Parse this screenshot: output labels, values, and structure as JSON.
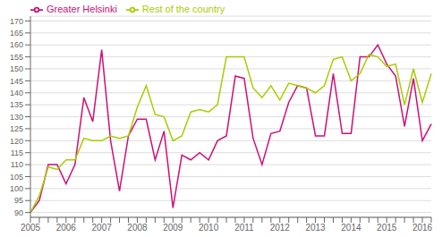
{
  "chart_data": {
    "type": "line",
    "categories": [
      "2005",
      null,
      null,
      null,
      "2006",
      null,
      null,
      null,
      "2007",
      null,
      null,
      null,
      "2008",
      null,
      null,
      null,
      "2009",
      null,
      null,
      null,
      "2010",
      null,
      null,
      null,
      "2011",
      null,
      null,
      null,
      "2012",
      null,
      null,
      null,
      "2013",
      null,
      null,
      null,
      "2014",
      null,
      null,
      null,
      "2015",
      null,
      null,
      null,
      "2016",
      null
    ],
    "series": [
      {
        "name": "Greater Helsinki",
        "color": "#cc1177",
        "values": [
          90,
          95,
          110,
          110,
          102,
          110,
          138,
          128,
          158,
          120,
          99,
          122,
          129,
          129,
          112,
          124,
          92,
          114,
          112,
          115,
          112,
          120,
          122,
          147,
          146,
          121,
          110,
          123,
          124,
          136,
          143,
          142,
          122,
          122,
          148,
          123,
          123,
          155,
          155,
          160,
          152,
          147,
          126,
          146,
          120,
          127
        ]
      },
      {
        "name": "Rest of the country",
        "color": "#aacc00",
        "values": [
          90,
          97,
          109,
          108,
          112,
          112,
          121,
          120,
          120,
          122,
          121,
          122,
          134,
          143,
          131,
          130,
          120,
          122,
          132,
          133,
          132,
          135,
          155,
          155,
          155,
          142,
          138,
          143,
          137,
          144,
          143,
          142,
          140,
          143,
          154,
          155,
          145,
          148,
          156,
          155,
          151,
          152,
          135,
          150,
          136,
          148
        ]
      }
    ],
    "ylim": [
      88,
      172
    ],
    "yticks": [
      90,
      95,
      100,
      105,
      110,
      115,
      120,
      125,
      130,
      135,
      140,
      145,
      150,
      155,
      160,
      165,
      170
    ],
    "grid": true,
    "legend": "upper left"
  }
}
